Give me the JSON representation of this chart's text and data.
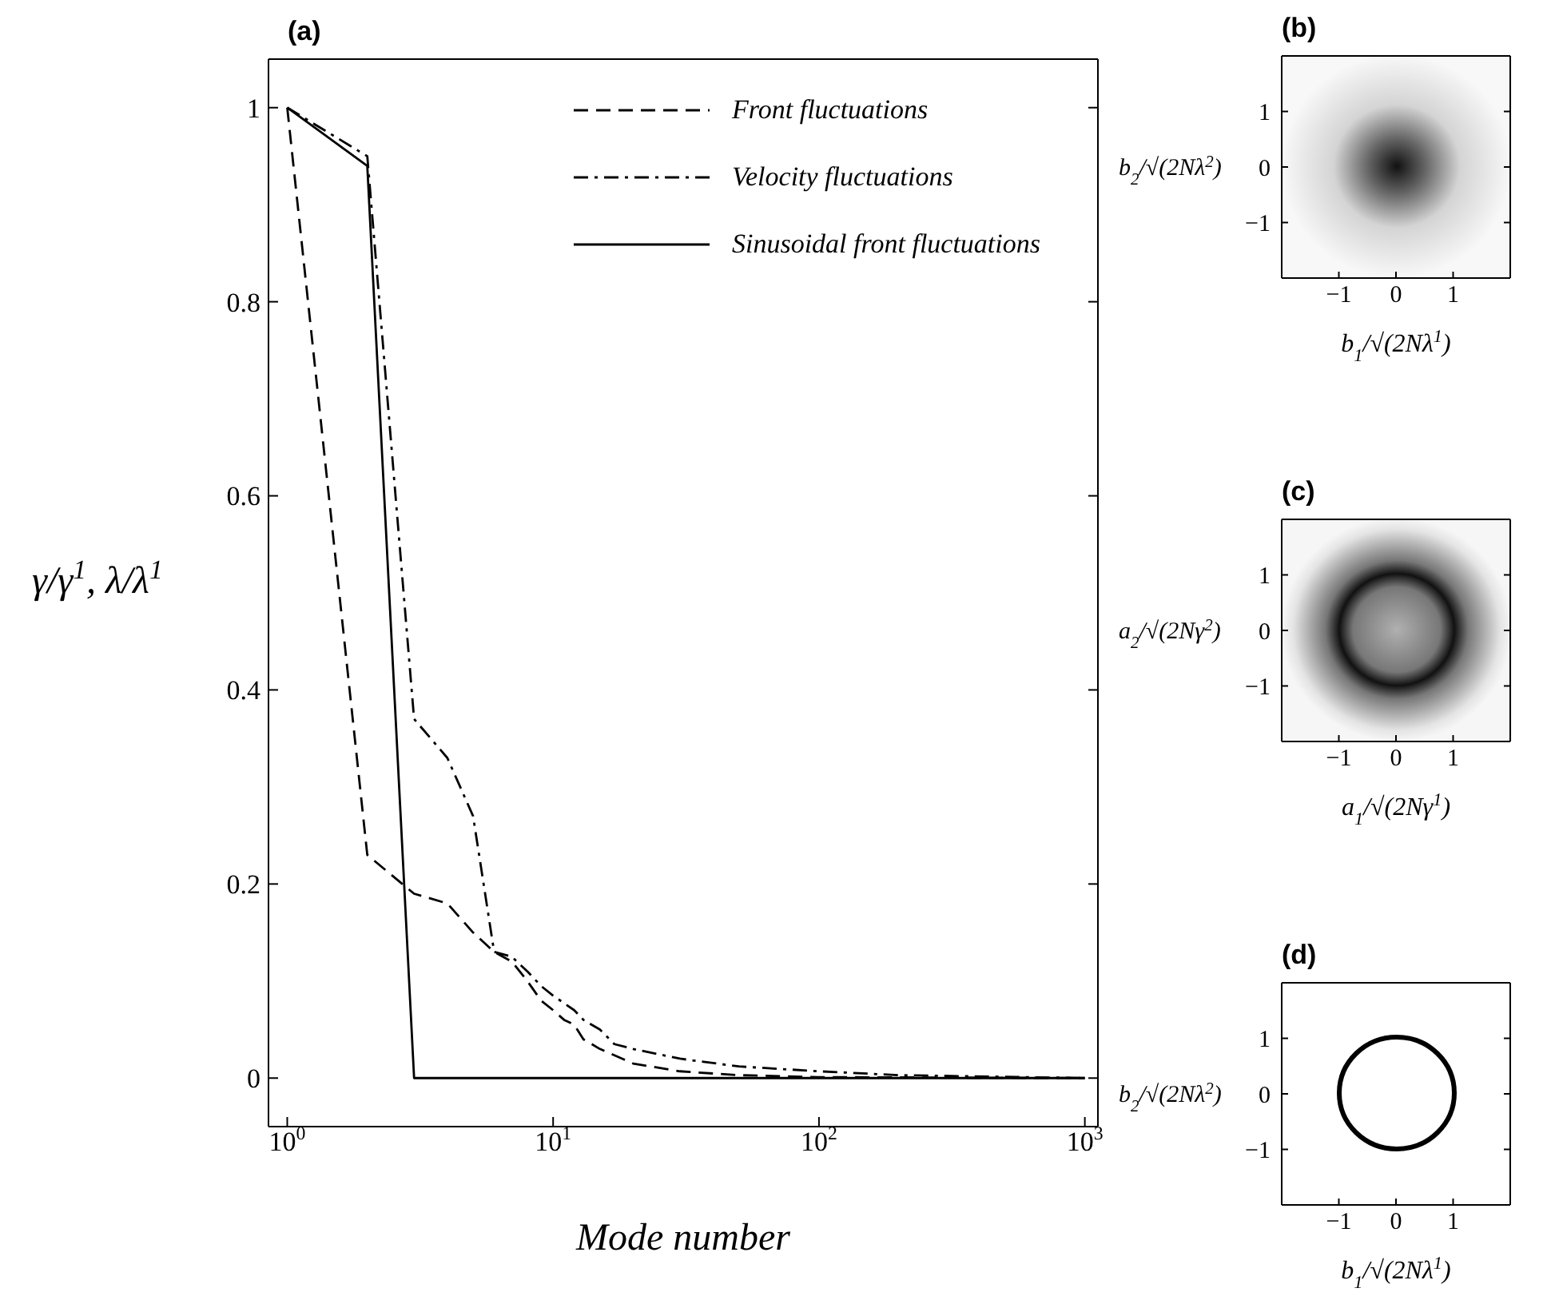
{
  "chart_data": [
    {
      "type": "line",
      "title": "(a)",
      "xlabel": "Mode number",
      "ylabel": "γ/γ$^{1}$,  λ/λ$^{1}$",
      "log": "x",
      "xlim": [
        0.85,
        1120
      ],
      "ylim": [
        -0.05,
        1.05
      ],
      "xticks": [
        {
          "value": 1,
          "label": "10$^{0}$"
        },
        {
          "value": 10,
          "label": "10$^{1}$"
        },
        {
          "value": 100,
          "label": "10$^{2}$"
        },
        {
          "value": 1000,
          "label": "10$^{3}$"
        }
      ],
      "yticks": [
        0,
        0.2,
        0.4,
        0.6,
        0.8,
        1
      ],
      "legend": "top right",
      "grid": false,
      "series": [
        {
          "name": "Front fluctuations",
          "color": "#000000",
          "line_style": "dashed",
          "x": [
            1,
            2,
            3,
            4,
            5,
            6,
            7,
            8,
            9,
            10,
            11,
            12,
            13,
            15,
            20,
            30,
            50,
            100,
            1000
          ],
          "values": [
            1,
            0.23,
            0.19,
            0.18,
            0.15,
            0.13,
            0.12,
            0.1,
            0.08,
            0.07,
            0.06,
            0.055,
            0.04,
            0.03,
            0.015,
            0.007,
            0.003,
            0.001,
            0
          ]
        },
        {
          "name": "Velocity fluctuations",
          "color": "#000000",
          "line_style": "dotted",
          "x": [
            1,
            2,
            3,
            4,
            5,
            6,
            7,
            8,
            9,
            10,
            12,
            13,
            15,
            17,
            20,
            30,
            50,
            100,
            200,
            1000
          ],
          "values": [
            1,
            0.95,
            0.37,
            0.33,
            0.27,
            0.13,
            0.125,
            0.11,
            0.095,
            0.085,
            0.07,
            0.06,
            0.05,
            0.035,
            0.03,
            0.02,
            0.012,
            0.007,
            0.003,
            0
          ]
        },
        {
          "name": "Sinusoidal front fluctuations",
          "color": "#000000",
          "line_style": "solid",
          "x": [
            1,
            2,
            3,
            1000
          ],
          "values": [
            1,
            0.94,
            0,
            0
          ]
        }
      ]
    },
    {
      "type": "scatter",
      "title": "(b)",
      "xlabel": "b$_{1}$/√(2Nλ$^{1}$)",
      "ylabel": "b$_{2}$/√(2Nλ$^{2}$)",
      "xlim": [
        -2,
        2
      ],
      "ylim": [
        -2,
        2
      ],
      "xticks": [
        -1,
        0,
        1
      ],
      "yticks": [
        -1,
        0,
        1
      ]
    },
    {
      "type": "scatter",
      "title": "(c)",
      "xlabel": "a$_{1}$/√(2Nγ$^{1}$)",
      "ylabel": "a$_{2}$/√(2Nγ$^{2}$)",
      "xlim": [
        -2,
        2
      ],
      "ylim": [
        -2,
        2
      ],
      "xticks": [
        -1,
        0,
        1
      ],
      "yticks": [
        -1,
        0,
        1
      ]
    },
    {
      "type": "scatter",
      "title": "(d)",
      "xlabel": "b$_{1}$/√(2Nλ$^{1}$)",
      "ylabel": "b$_{2}$/√(2Nλ$^{2}$)",
      "xlim": [
        -2,
        2
      ],
      "ylim": [
        -2,
        2
      ],
      "xticks": [
        -1,
        0,
        1
      ],
      "yticks": [
        -1,
        0,
        1
      ]
    }
  ]
}
